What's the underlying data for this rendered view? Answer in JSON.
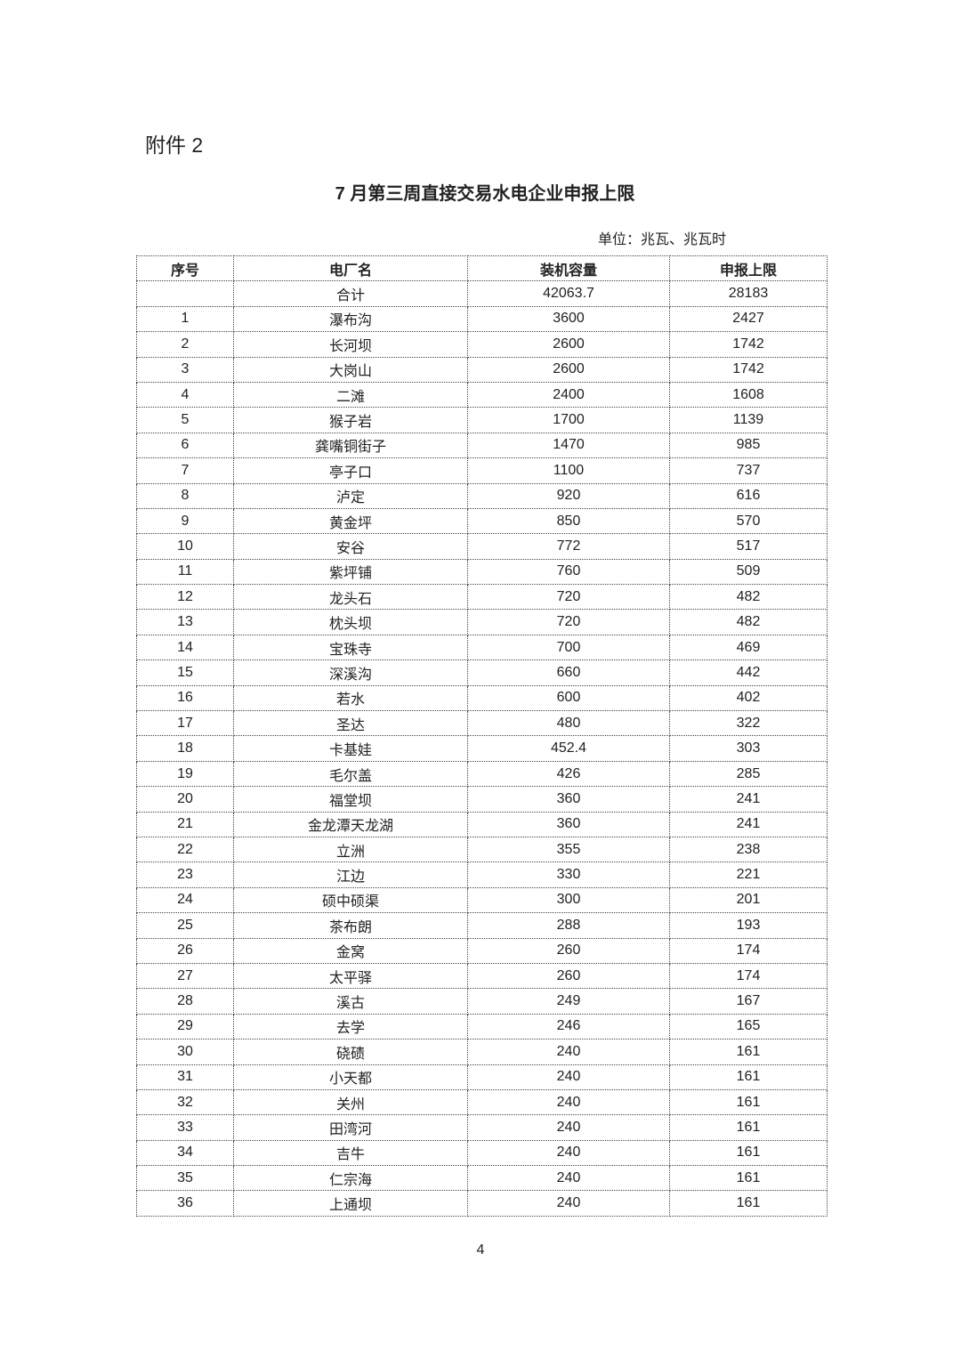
{
  "attachment_label": "附件 2",
  "title": "7 月第三周直接交易水电企业申报上限",
  "unit": "单位：兆瓦、兆瓦时",
  "table": {
    "headers": [
      "序号",
      "电厂名",
      "装机容量",
      "申报上限"
    ],
    "total": {
      "index": "",
      "name": "合计",
      "capacity": "42063.7",
      "limit": "28183"
    },
    "rows": [
      {
        "index": "1",
        "name": "瀑布沟",
        "capacity": "3600",
        "limit": "2427"
      },
      {
        "index": "2",
        "name": "长河坝",
        "capacity": "2600",
        "limit": "1742"
      },
      {
        "index": "3",
        "name": "大岗山",
        "capacity": "2600",
        "limit": "1742"
      },
      {
        "index": "4",
        "name": "二滩",
        "capacity": "2400",
        "limit": "1608"
      },
      {
        "index": "5",
        "name": "猴子岩",
        "capacity": "1700",
        "limit": "1139"
      },
      {
        "index": "6",
        "name": "龚嘴铜街子",
        "capacity": "1470",
        "limit": "985"
      },
      {
        "index": "7",
        "name": "亭子口",
        "capacity": "1100",
        "limit": "737"
      },
      {
        "index": "8",
        "name": "泸定",
        "capacity": "920",
        "limit": "616"
      },
      {
        "index": "9",
        "name": "黄金坪",
        "capacity": "850",
        "limit": "570"
      },
      {
        "index": "10",
        "name": "安谷",
        "capacity": "772",
        "limit": "517"
      },
      {
        "index": "11",
        "name": "紫坪铺",
        "capacity": "760",
        "limit": "509"
      },
      {
        "index": "12",
        "name": "龙头石",
        "capacity": "720",
        "limit": "482"
      },
      {
        "index": "13",
        "name": "枕头坝",
        "capacity": "720",
        "limit": "482"
      },
      {
        "index": "14",
        "name": "宝珠寺",
        "capacity": "700",
        "limit": "469"
      },
      {
        "index": "15",
        "name": "深溪沟",
        "capacity": "660",
        "limit": "442"
      },
      {
        "index": "16",
        "name": "若水",
        "capacity": "600",
        "limit": "402"
      },
      {
        "index": "17",
        "name": "圣达",
        "capacity": "480",
        "limit": "322"
      },
      {
        "index": "18",
        "name": "卡基娃",
        "capacity": "452.4",
        "limit": "303"
      },
      {
        "index": "19",
        "name": "毛尔盖",
        "capacity": "426",
        "limit": "285"
      },
      {
        "index": "20",
        "name": "福堂坝",
        "capacity": "360",
        "limit": "241"
      },
      {
        "index": "21",
        "name": "金龙潭天龙湖",
        "capacity": "360",
        "limit": "241"
      },
      {
        "index": "22",
        "name": "立洲",
        "capacity": "355",
        "limit": "238"
      },
      {
        "index": "23",
        "name": "江边",
        "capacity": "330",
        "limit": "221"
      },
      {
        "index": "24",
        "name": "硕中硕渠",
        "capacity": "300",
        "limit": "201"
      },
      {
        "index": "25",
        "name": "茶布朗",
        "capacity": "288",
        "limit": "193"
      },
      {
        "index": "26",
        "name": "金窝",
        "capacity": "260",
        "limit": "174"
      },
      {
        "index": "27",
        "name": "太平驿",
        "capacity": "260",
        "limit": "174"
      },
      {
        "index": "28",
        "name": "溪古",
        "capacity": "249",
        "limit": "167"
      },
      {
        "index": "29",
        "name": "去学",
        "capacity": "246",
        "limit": "165"
      },
      {
        "index": "30",
        "name": "硗碛",
        "capacity": "240",
        "limit": "161"
      },
      {
        "index": "31",
        "name": "小天都",
        "capacity": "240",
        "limit": "161"
      },
      {
        "index": "32",
        "name": "关州",
        "capacity": "240",
        "limit": "161"
      },
      {
        "index": "33",
        "name": "田湾河",
        "capacity": "240",
        "limit": "161"
      },
      {
        "index": "34",
        "name": "吉牛",
        "capacity": "240",
        "limit": "161"
      },
      {
        "index": "35",
        "name": "仁宗海",
        "capacity": "240",
        "limit": "161"
      },
      {
        "index": "36",
        "name": "上通坝",
        "capacity": "240",
        "limit": "161"
      }
    ]
  },
  "page_number": "4"
}
